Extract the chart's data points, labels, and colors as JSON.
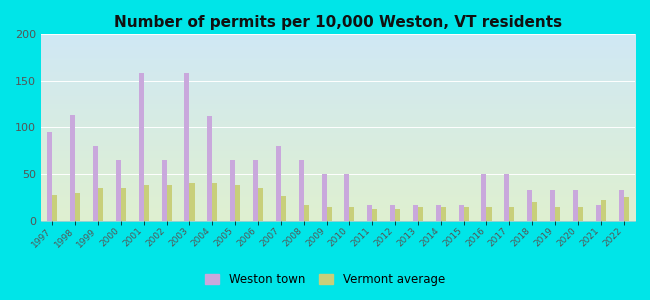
{
  "title": "Number of permits per 10,000 Weston, VT residents",
  "years": [
    1997,
    1998,
    1999,
    2000,
    2001,
    2002,
    2003,
    2004,
    2005,
    2006,
    2007,
    2008,
    2009,
    2010,
    2011,
    2012,
    2013,
    2014,
    2015,
    2016,
    2017,
    2018,
    2019,
    2020,
    2021,
    2022
  ],
  "weston": [
    95,
    113,
    80,
    65,
    158,
    65,
    158,
    112,
    65,
    65,
    80,
    65,
    50,
    50,
    17,
    17,
    17,
    17,
    17,
    50,
    50,
    33,
    33,
    33,
    17,
    33
  ],
  "vermont": [
    28,
    30,
    35,
    35,
    38,
    38,
    40,
    40,
    38,
    35,
    27,
    17,
    15,
    15,
    13,
    13,
    15,
    15,
    15,
    15,
    15,
    20,
    15,
    15,
    22,
    25
  ],
  "weston_color": "#c9a8dc",
  "vermont_color": "#c8cf7a",
  "bg_outer": "#00e5e8",
  "bg_plot_top": "#d0e8f5",
  "bg_plot_bottom": "#dff0d0",
  "ylim": [
    0,
    200
  ],
  "yticks": [
    0,
    50,
    100,
    150,
    200
  ],
  "title_fontsize": 11,
  "title_fontweight": "bold",
  "legend_weston": "Weston town",
  "legend_vermont": "Vermont average",
  "bar_width": 0.22,
  "figsize": [
    6.5,
    3.0
  ],
  "dpi": 100
}
